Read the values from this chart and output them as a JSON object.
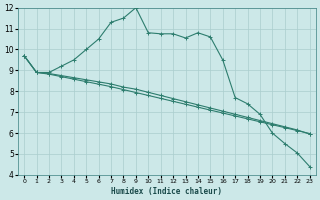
{
  "title": "",
  "xlabel": "Humidex (Indice chaleur)",
  "bg_color": "#cce8e8",
  "line_color": "#2d7d6e",
  "grid_color": "#aacece",
  "xlim": [
    -0.5,
    23.5
  ],
  "ylim": [
    4,
    12
  ],
  "xticks": [
    0,
    1,
    2,
    3,
    4,
    5,
    6,
    7,
    8,
    9,
    10,
    11,
    12,
    13,
    14,
    15,
    16,
    17,
    18,
    19,
    20,
    21,
    22,
    23
  ],
  "yticks": [
    4,
    5,
    6,
    7,
    8,
    9,
    10,
    11,
    12
  ],
  "line1_x": [
    0,
    1,
    2,
    3,
    4,
    5,
    6,
    7,
    8,
    9,
    10,
    11,
    12,
    13,
    14,
    15,
    16,
    17,
    18,
    19,
    20,
    21,
    22,
    23
  ],
  "line1_y": [
    9.7,
    8.9,
    8.9,
    9.2,
    9.5,
    10.0,
    10.5,
    11.3,
    11.5,
    12.0,
    10.8,
    10.75,
    10.75,
    10.55,
    10.8,
    10.6,
    9.5,
    7.7,
    7.4,
    6.9,
    6.0,
    5.5,
    5.05,
    4.4
  ],
  "line2_x": [
    0,
    1,
    2,
    3,
    4,
    5,
    6,
    7,
    8,
    9,
    10,
    11,
    12,
    13,
    14,
    15,
    16,
    17,
    18,
    19,
    20,
    21,
    22,
    23
  ],
  "line2_y": [
    9.7,
    8.9,
    8.85,
    8.75,
    8.65,
    8.55,
    8.45,
    8.35,
    8.2,
    8.1,
    7.95,
    7.8,
    7.65,
    7.5,
    7.35,
    7.2,
    7.05,
    6.9,
    6.75,
    6.6,
    6.45,
    6.3,
    6.15,
    5.95
  ],
  "line3_x": [
    0,
    1,
    2,
    3,
    4,
    5,
    6,
    7,
    8,
    9,
    10,
    11,
    12,
    13,
    14,
    15,
    16,
    17,
    18,
    19,
    20,
    21,
    22,
    23
  ],
  "line3_y": [
    9.7,
    8.9,
    8.82,
    8.7,
    8.58,
    8.46,
    8.34,
    8.22,
    8.08,
    7.94,
    7.8,
    7.66,
    7.52,
    7.38,
    7.24,
    7.1,
    6.96,
    6.82,
    6.68,
    6.54,
    6.4,
    6.26,
    6.12,
    5.98
  ]
}
